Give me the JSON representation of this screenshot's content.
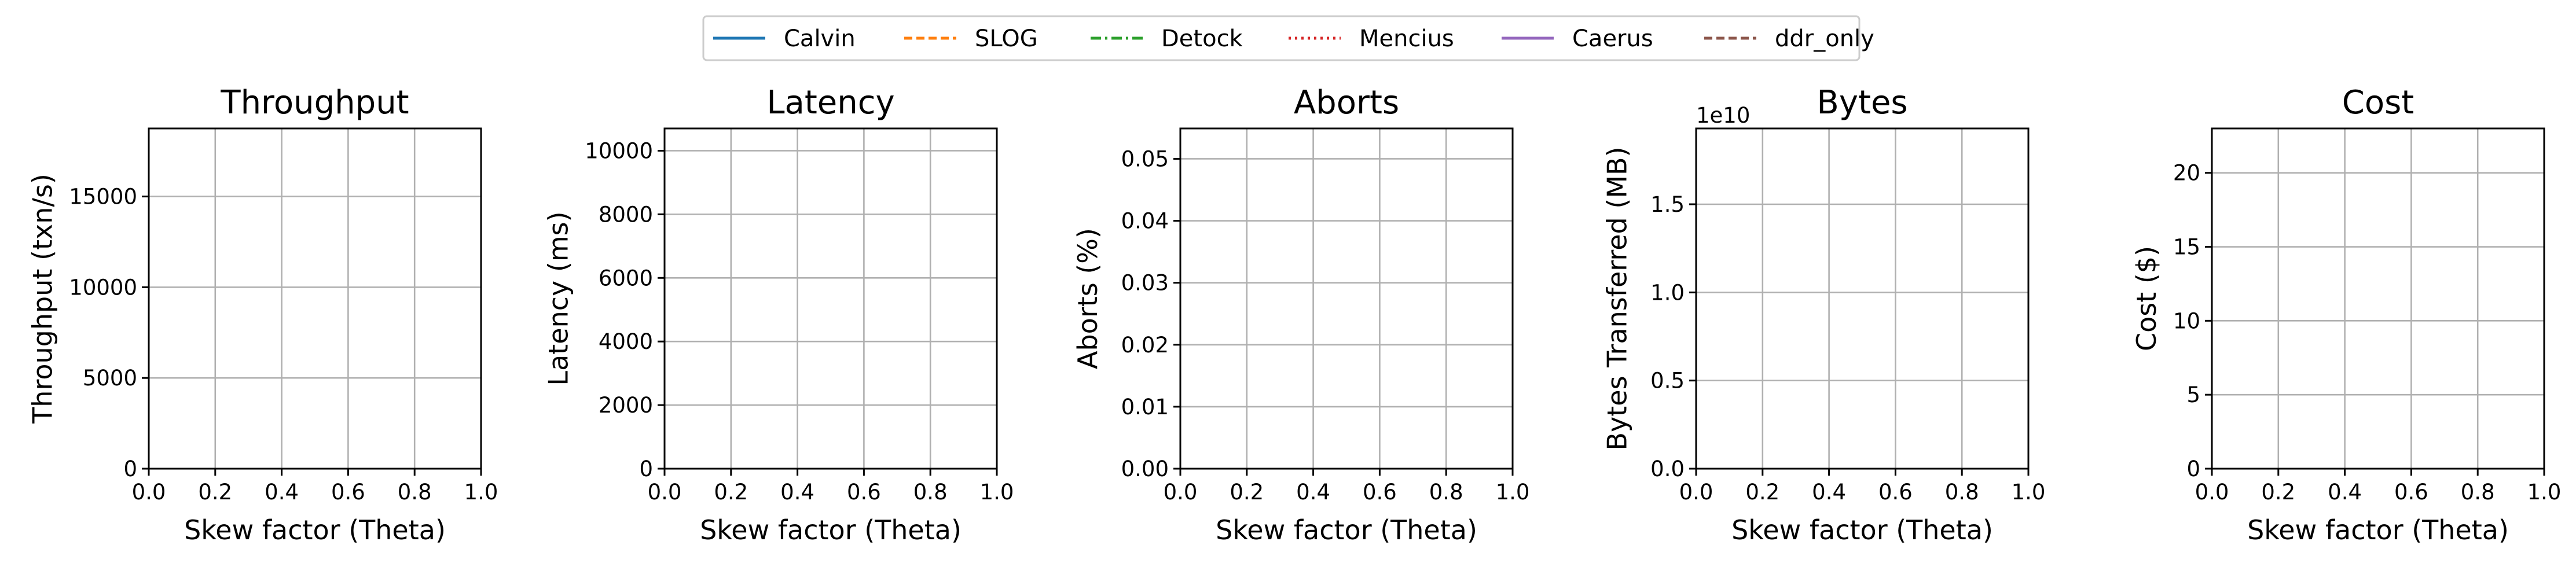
{
  "legend": {
    "entries": [
      {
        "label": "Calvin",
        "color": "#1f77b4",
        "dash": "solid"
      },
      {
        "label": "SLOG",
        "color": "#ff7f0e",
        "dash": "dashed"
      },
      {
        "label": "Detock",
        "color": "#2ca02c",
        "dash": "dashdot"
      },
      {
        "label": "Mencius",
        "color": "#d62728",
        "dash": "dotted"
      },
      {
        "label": "Caerus",
        "color": "#9467bd",
        "dash": "solid"
      },
      {
        "label": "ddr_only",
        "color": "#8c564b",
        "dash": "dashed"
      }
    ]
  },
  "chart_data": [
    {
      "type": "line",
      "title": "Throughput",
      "xlabel": "Skew factor (Theta)",
      "ylabel": "Throughput (txn/s)",
      "xlim": [
        0,
        1
      ],
      "ylim": [
        0,
        18750
      ],
      "xticks": [
        0.0,
        0.2,
        0.4,
        0.6,
        0.8,
        1.0
      ],
      "xtick_labels": [
        "0.0",
        "0.2",
        "0.4",
        "0.6",
        "0.8",
        "1.0"
      ],
      "yticks": [
        0,
        5000,
        10000,
        15000
      ],
      "ytick_labels": [
        "0",
        "5000",
        "10000",
        "15000"
      ],
      "offset_text": "",
      "grid": true,
      "series": []
    },
    {
      "type": "line",
      "title": "Latency",
      "xlabel": "Skew factor (Theta)",
      "ylabel": "Latency (ms)",
      "xlim": [
        0,
        1
      ],
      "ylim": [
        0,
        10700
      ],
      "xticks": [
        0.0,
        0.2,
        0.4,
        0.6,
        0.8,
        1.0
      ],
      "xtick_labels": [
        "0.0",
        "0.2",
        "0.4",
        "0.6",
        "0.8",
        "1.0"
      ],
      "yticks": [
        0,
        2000,
        4000,
        6000,
        8000,
        10000
      ],
      "ytick_labels": [
        "0",
        "2000",
        "4000",
        "6000",
        "8000",
        "10000"
      ],
      "offset_text": "",
      "grid": true,
      "series": []
    },
    {
      "type": "line",
      "title": "Aborts",
      "xlabel": "Skew factor (Theta)",
      "ylabel": "Aborts (%)",
      "xlim": [
        0,
        1
      ],
      "ylim": [
        0,
        0.0549
      ],
      "xticks": [
        0.0,
        0.2,
        0.4,
        0.6,
        0.8,
        1.0
      ],
      "xtick_labels": [
        "0.0",
        "0.2",
        "0.4",
        "0.6",
        "0.8",
        "1.0"
      ],
      "yticks": [
        0,
        0.01,
        0.02,
        0.03,
        0.04,
        0.05
      ],
      "ytick_labels": [
        "0.00",
        "0.01",
        "0.02",
        "0.03",
        "0.04",
        "0.05"
      ],
      "offset_text": "",
      "grid": true,
      "series": []
    },
    {
      "type": "line",
      "title": "Bytes",
      "xlabel": "Skew factor (Theta)",
      "ylabel": "Bytes Transferred (MB)",
      "xlim": [
        0,
        1
      ],
      "ylim": [
        0,
        1.93
      ],
      "xticks": [
        0.0,
        0.2,
        0.4,
        0.6,
        0.8,
        1.0
      ],
      "xtick_labels": [
        "0.0",
        "0.2",
        "0.4",
        "0.6",
        "0.8",
        "1.0"
      ],
      "yticks": [
        0,
        0.5,
        1.0,
        1.5
      ],
      "ytick_labels": [
        "0.0",
        "0.5",
        "1.0",
        "1.5"
      ],
      "offset_text": "1e10",
      "grid": true,
      "series": []
    },
    {
      "type": "line",
      "title": "Cost",
      "xlabel": "Skew factor (Theta)",
      "ylabel": "Cost ($)",
      "xlim": [
        0,
        1
      ],
      "ylim": [
        0,
        23
      ],
      "xticks": [
        0.0,
        0.2,
        0.4,
        0.6,
        0.8,
        1.0
      ],
      "xtick_labels": [
        "0.0",
        "0.2",
        "0.4",
        "0.6",
        "0.8",
        "1.0"
      ],
      "yticks": [
        0,
        5,
        10,
        15,
        20
      ],
      "ytick_labels": [
        "0",
        "5",
        "10",
        "15",
        "20"
      ],
      "offset_text": "",
      "grid": true,
      "series": []
    }
  ]
}
